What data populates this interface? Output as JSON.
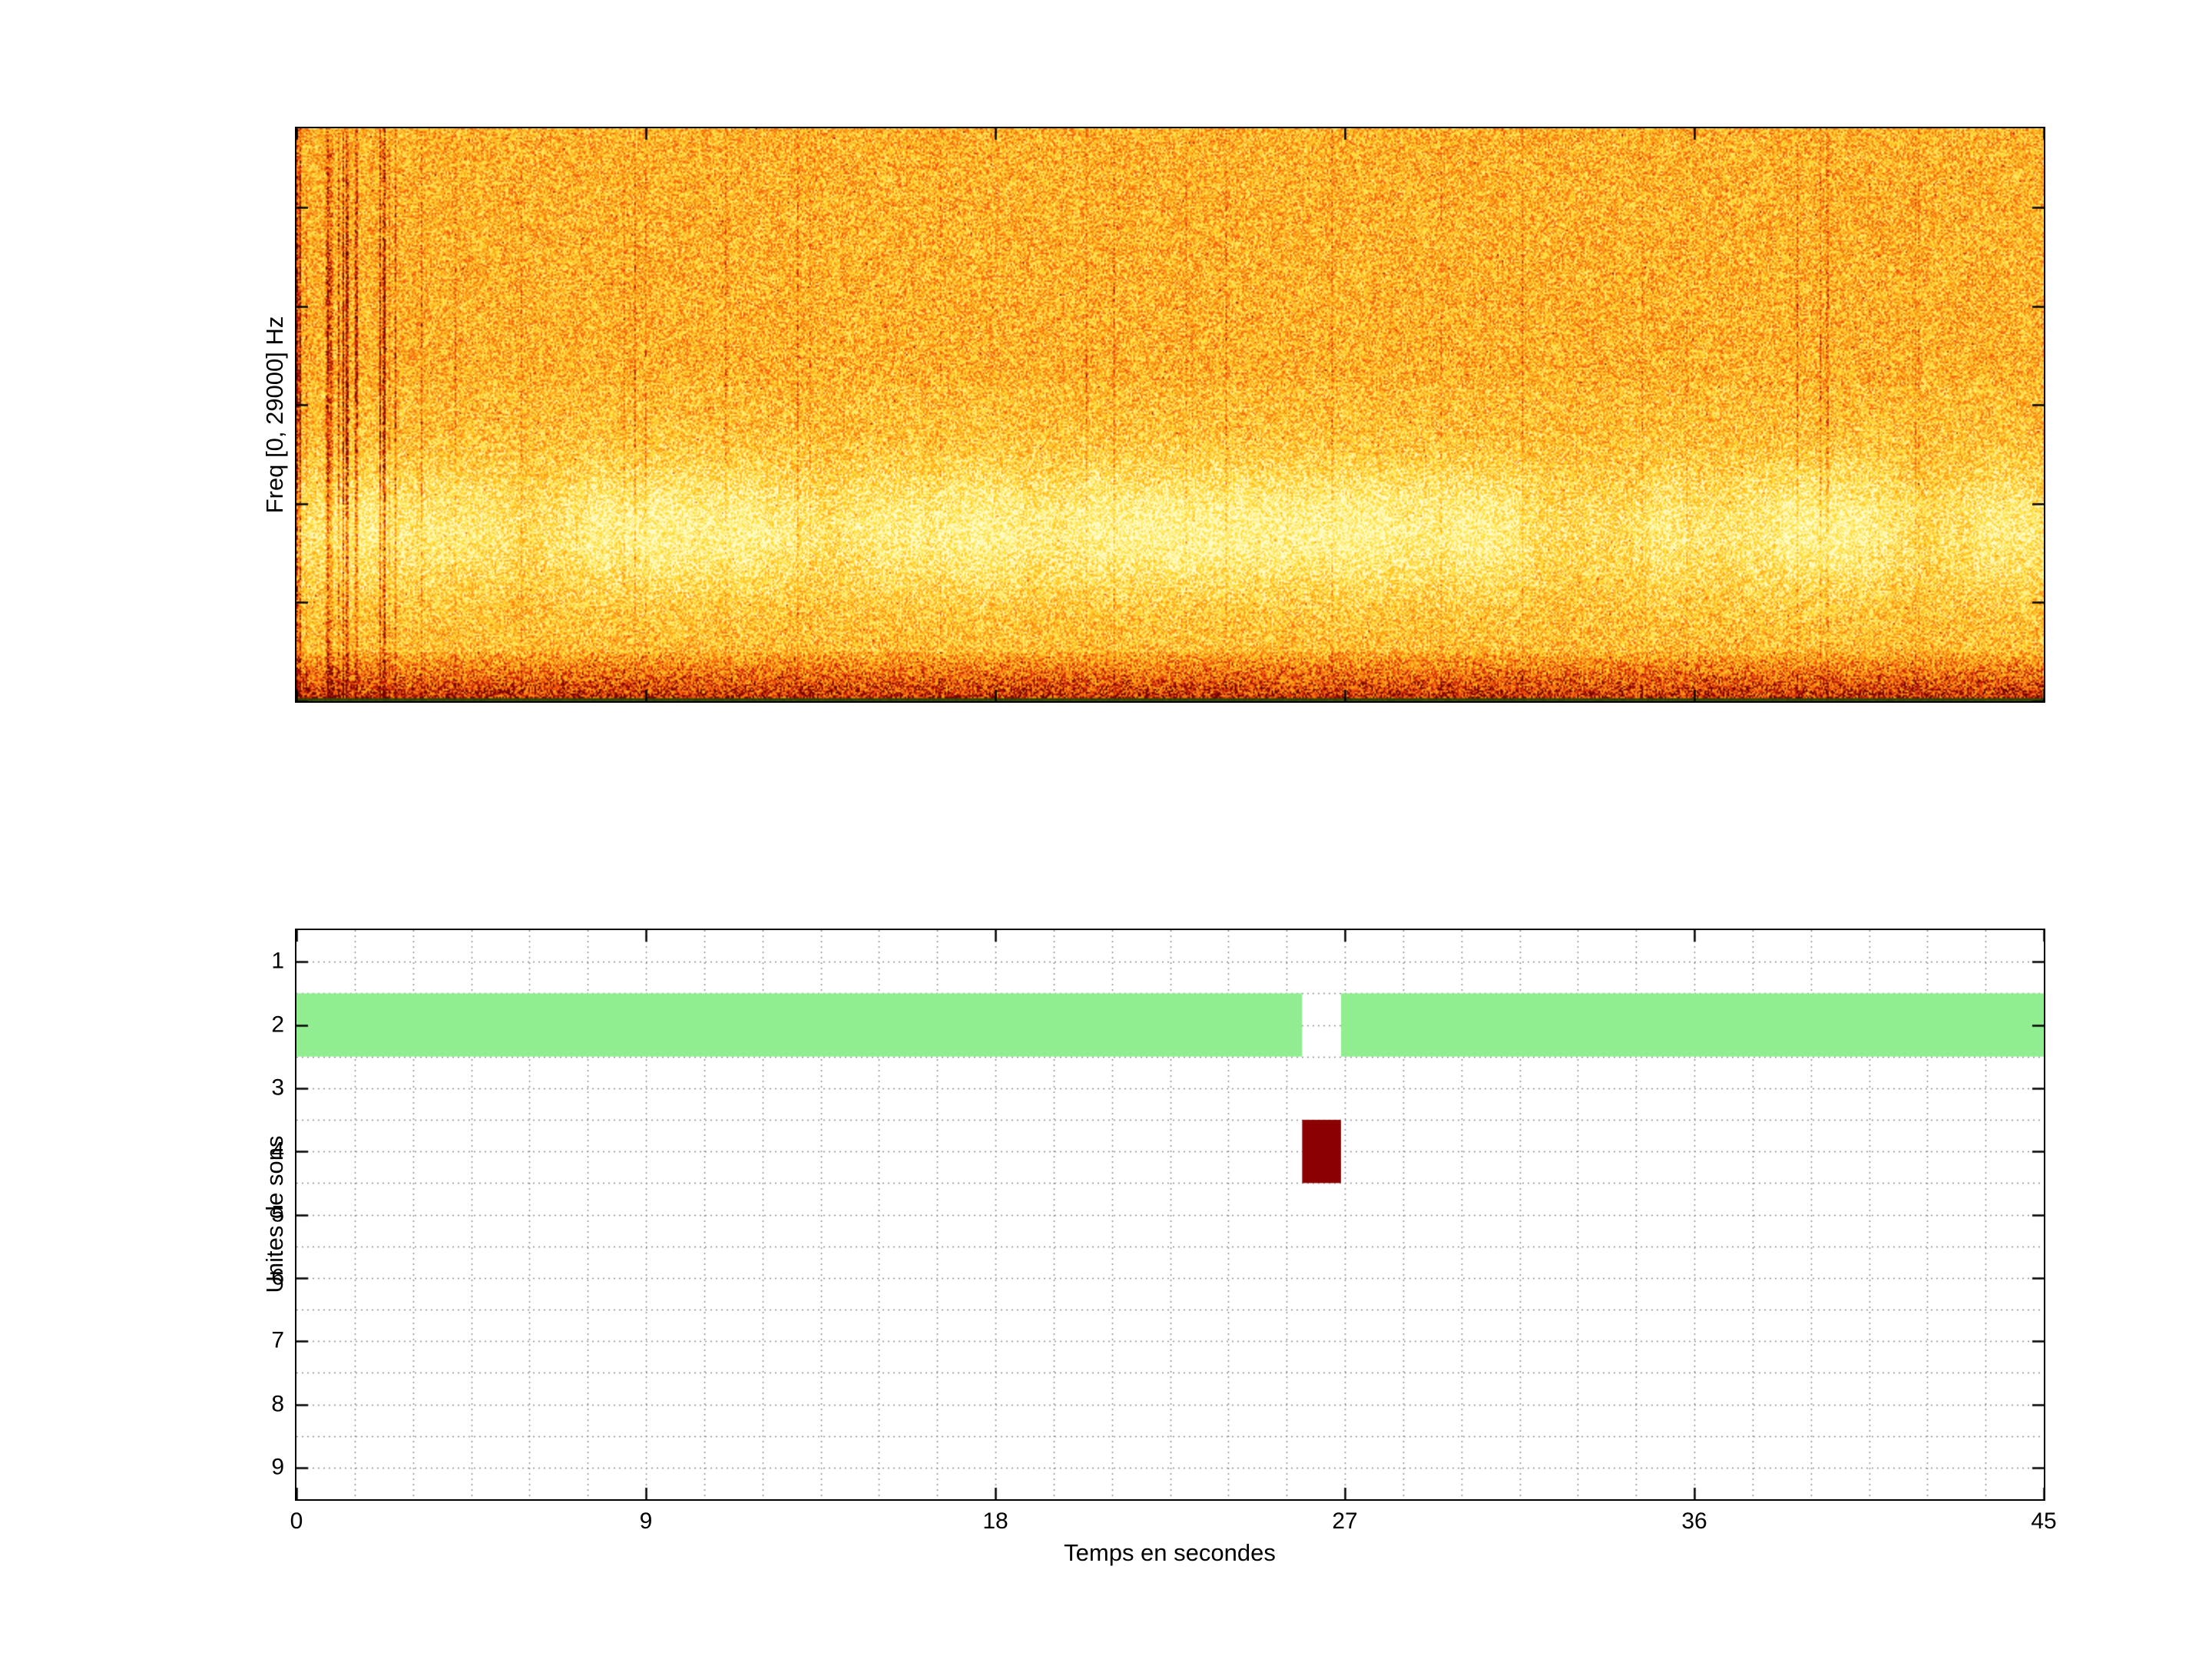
{
  "window": {
    "background": "#ffffff"
  },
  "chart_data": [
    {
      "type": "heatmap",
      "role": "spectrogram",
      "title": "",
      "xlabel": "",
      "ylabel": "Freq [0, 29000] Hz",
      "x_range_seconds": [
        0,
        45
      ],
      "x_ticks_seconds": [
        0,
        9,
        18,
        27,
        36,
        45
      ],
      "y_range_hz": [
        0,
        29000
      ],
      "colormap_low_to_high": [
        "#FFFCC8",
        "#FFE13C",
        "#FFA519",
        "#F05A0F",
        "#C81E05",
        "#690000"
      ],
      "appearance": {
        "base": "dense yellow-orange broadband noise over the whole panel",
        "bright_band": "pale bright-yellow horizontal energy band across the lower-middle frequencies",
        "bottom_band": "dense dark red-orange high-energy band along the lowest frequencies",
        "left_streaks": "strong dark-red vertical striations during the first ~2 seconds",
        "random_streaks": "sparse faint reddish vertical lines scattered across the whole duration",
        "bottom_edge_line": "thin dark olive-green line at the very bottom edge"
      }
    },
    {
      "type": "heatmap",
      "role": "detections",
      "title": "",
      "xlabel": "Temps en secondes",
      "ylabel": "Unites de sons",
      "x_range": [
        0,
        45
      ],
      "y_range": [
        0.5,
        9.5
      ],
      "x_ticks": [
        0,
        9,
        18,
        27,
        36,
        45
      ],
      "y_ticks": [
        1,
        2,
        3,
        4,
        5,
        6,
        7,
        8,
        9
      ],
      "grid": {
        "on": true,
        "style": "dotted",
        "color": "#8c8c8c",
        "x_step": 1.5,
        "y_step": 0.5
      },
      "segments": [
        {
          "unit": 2,
          "start_s": 0.0,
          "end_s": 25.9,
          "color": "#90EE90"
        },
        {
          "unit": 2,
          "start_s": 26.9,
          "end_s": 45.0,
          "color": "#90EE90"
        },
        {
          "unit": 4,
          "start_s": 25.9,
          "end_s": 26.9,
          "color": "#8B0000"
        }
      ]
    }
  ]
}
